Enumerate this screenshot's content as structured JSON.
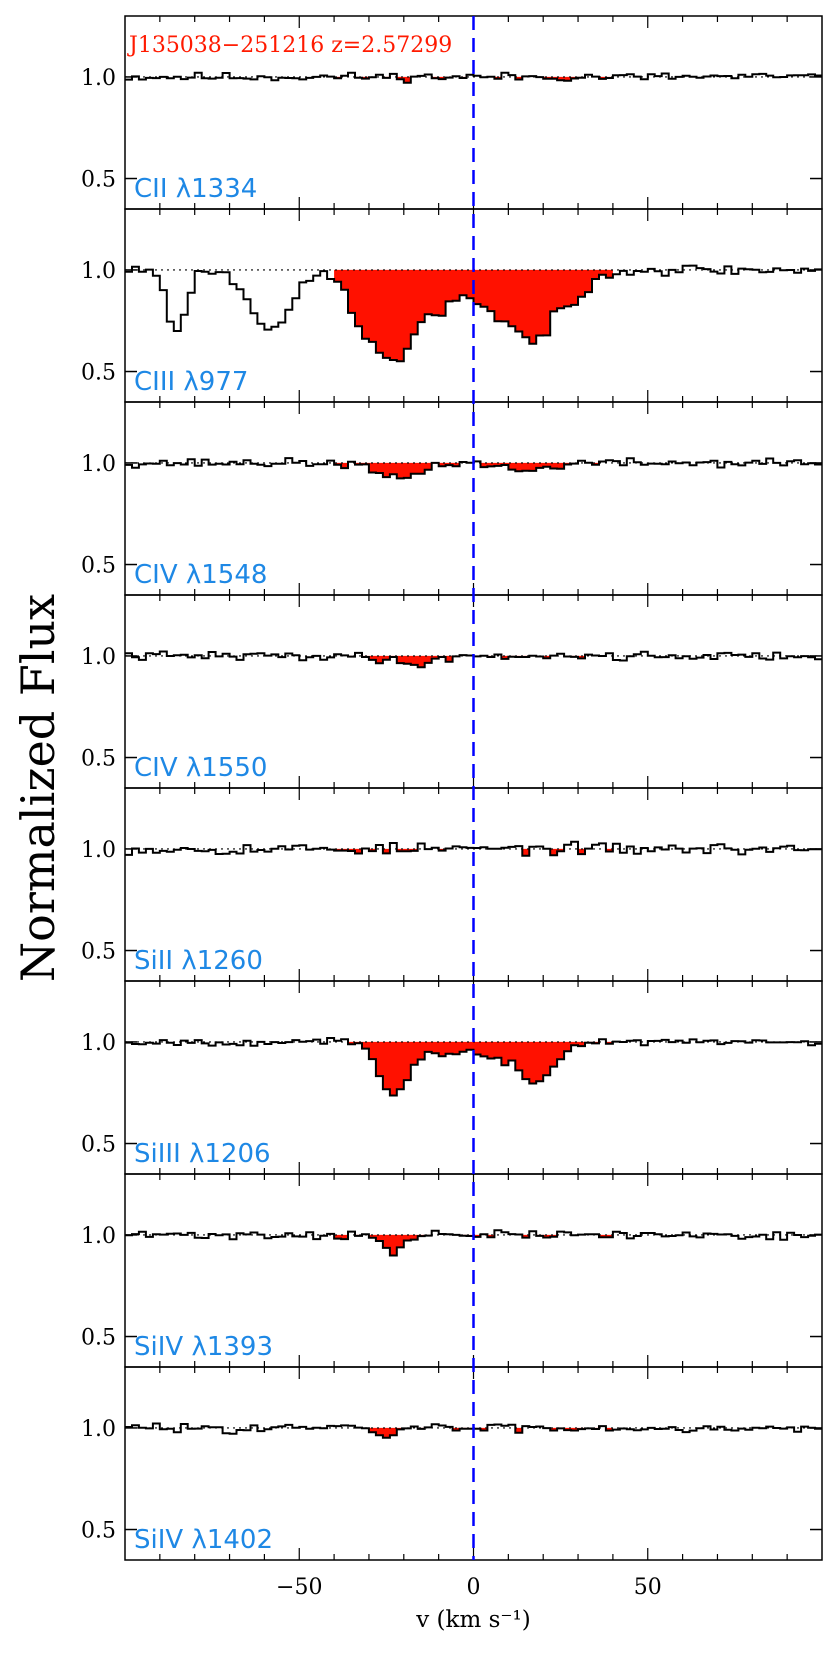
{
  "chart_data": {
    "type": "line",
    "title": "J135038−251216 z=2.57299",
    "xlabel": "v (km s⁻¹)",
    "ylabel": "Normalized Flux",
    "xlim": [
      -100,
      100
    ],
    "ylim": [
      0.35,
      1.3
    ],
    "xticks": [
      -50,
      0,
      50
    ],
    "xtick_labels": [
      "−50",
      "0",
      "50"
    ],
    "yticks": [
      0.5,
      1.0
    ],
    "ytick_labels": [
      "0.5",
      "1.0"
    ],
    "absorption_window": [
      -40,
      40
    ],
    "marker_velocity": 0,
    "colors": {
      "title": "#ff1a00",
      "ion_label": "#1e88e5",
      "absorption_fill": "#ff1100",
      "marker": "#0000ff",
      "spectrum": "#000000"
    },
    "panels": [
      {
        "ion": "CII λ1334",
        "features": [],
        "noise": 0.015,
        "seed": 11
      },
      {
        "ion": "CIII λ977",
        "features": [
          {
            "v": -85,
            "depth": 0.32,
            "width": 2.5
          },
          {
            "v": -58,
            "depth": 0.28,
            "width": 6
          },
          {
            "v": -32,
            "depth": 0.25,
            "width": 4
          },
          {
            "v": -22,
            "depth": 0.45,
            "width": 5
          },
          {
            "v": -10,
            "depth": 0.2,
            "width": 4
          },
          {
            "v": 5,
            "depth": 0.18,
            "width": 6
          },
          {
            "v": 18,
            "depth": 0.33,
            "width": 6
          },
          {
            "v": 30,
            "depth": 0.12,
            "width": 3
          }
        ],
        "noise": 0.02,
        "seed": 23
      },
      {
        "ion": "CIV λ1548",
        "features": [
          {
            "v": -22,
            "depth": 0.08,
            "width": 6
          },
          {
            "v": 15,
            "depth": 0.04,
            "width": 6
          }
        ],
        "noise": 0.015,
        "seed": 37
      },
      {
        "ion": "CIV λ1550",
        "features": [
          {
            "v": -18,
            "depth": 0.04,
            "width": 6
          }
        ],
        "noise": 0.015,
        "seed": 41
      },
      {
        "ion": "SiII λ1260",
        "features": [],
        "noise": 0.02,
        "seed": 53
      },
      {
        "ion": "SiIII λ1206",
        "features": [
          {
            "v": -23,
            "depth": 0.27,
            "width": 4
          },
          {
            "v": -10,
            "depth": 0.06,
            "width": 5
          },
          {
            "v": 5,
            "depth": 0.08,
            "width": 5
          },
          {
            "v": 18,
            "depth": 0.2,
            "width": 5
          }
        ],
        "noise": 0.012,
        "seed": 67
      },
      {
        "ion": "SiIV λ1393",
        "features": [
          {
            "v": -23,
            "depth": 0.09,
            "width": 3
          }
        ],
        "noise": 0.015,
        "seed": 71
      },
      {
        "ion": "SiIV λ1402",
        "features": [
          {
            "v": -26,
            "depth": 0.04,
            "width": 3
          }
        ],
        "noise": 0.015,
        "seed": 83
      }
    ]
  }
}
